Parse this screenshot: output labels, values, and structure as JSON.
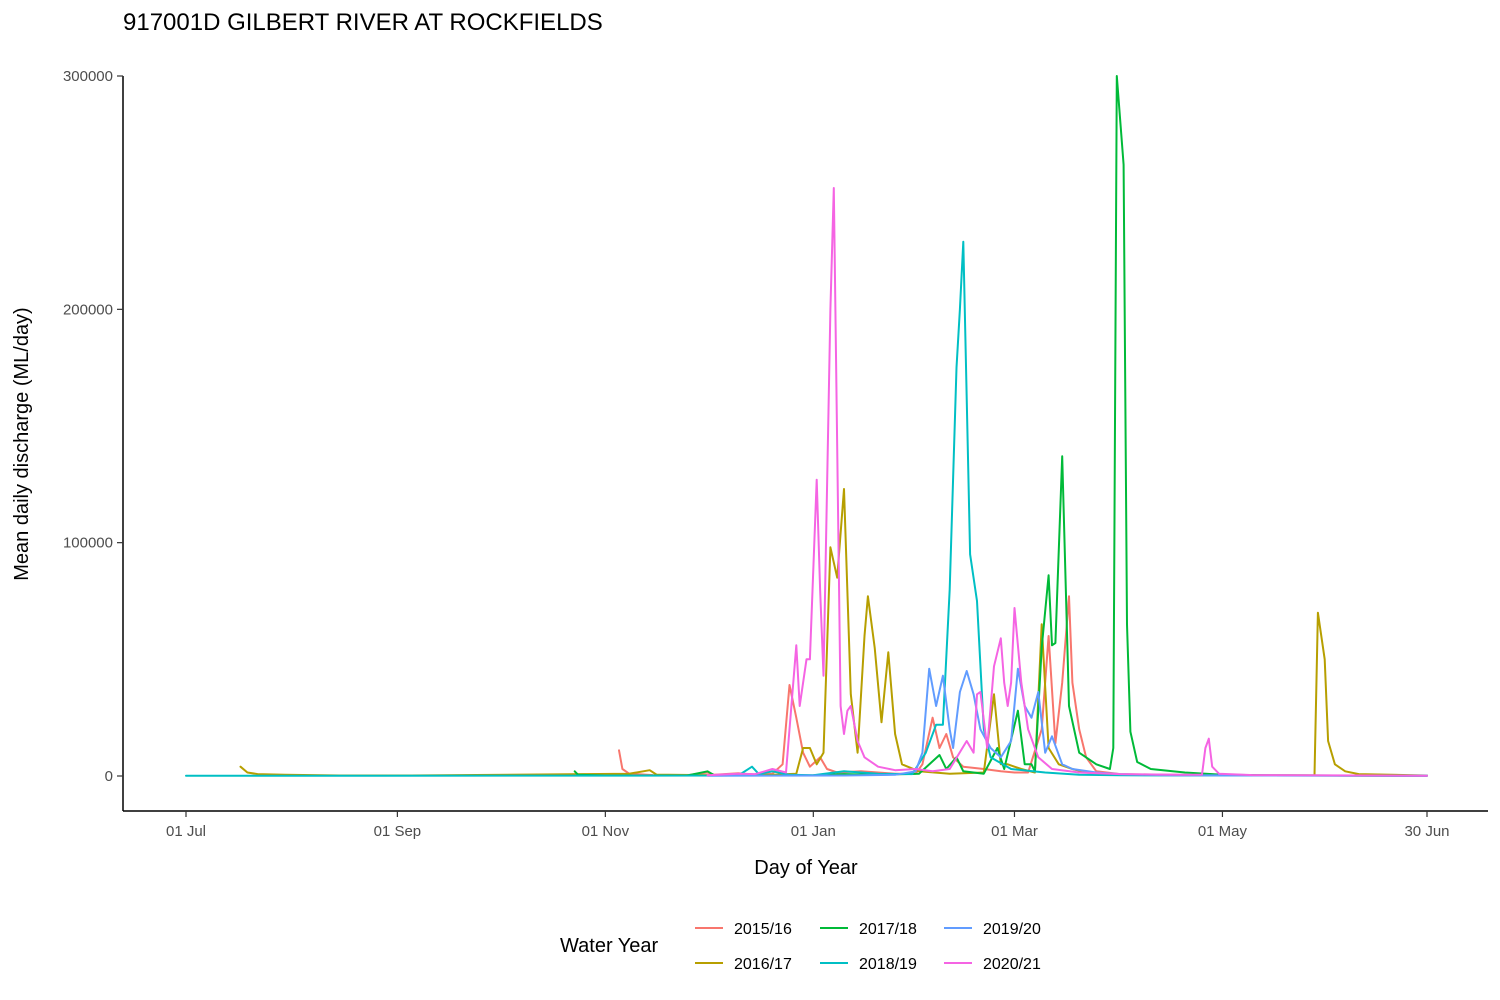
{
  "chart_data": {
    "type": "line",
    "title": "917001D GILBERT RIVER AT ROCKFIELDS",
    "xlabel": "Day of Year",
    "ylabel": "Mean daily discharge (ML/day)",
    "x_unit": "date (water year Jul–Jun)",
    "xlim": [
      "01 Jul",
      "30 Jun"
    ],
    "ylim": [
      -15000,
      300000
    ],
    "x_ticks": [
      {
        "label": "01 Jul",
        "date": "07-01"
      },
      {
        "label": "01 Sep",
        "date": "09-01"
      },
      {
        "label": "01 Nov",
        "date": "11-01"
      },
      {
        "label": "01 Jan",
        "date": "01-01"
      },
      {
        "label": "01 Mar",
        "date": "03-01"
      },
      {
        "label": "01 May",
        "date": "05-01"
      },
      {
        "label": "30 Jun",
        "date": "06-30"
      }
    ],
    "y_ticks": [
      {
        "label": "0",
        "value": 0
      },
      {
        "label": "100000",
        "value": 100000
      },
      {
        "label": "200000",
        "value": 200000
      },
      {
        "label": "300000",
        "value": 300000
      }
    ],
    "grid": false,
    "legend": {
      "title": "Water Year",
      "position": "bottom"
    },
    "series": [
      {
        "name": "2015/16",
        "color": "#F8766D",
        "points": [
          [
            "11-05",
            11000
          ],
          [
            "11-06",
            3000
          ],
          [
            "11-08",
            1000
          ],
          [
            "11-15",
            400
          ],
          [
            "11-25",
            300
          ],
          [
            "12-01",
            1500
          ],
          [
            "12-03",
            500
          ],
          [
            "12-10",
            1200
          ],
          [
            "12-15",
            500
          ],
          [
            "12-20",
            1000
          ],
          [
            "12-23",
            5000
          ],
          [
            "12-25",
            39000
          ],
          [
            "12-27",
            25000
          ],
          [
            "12-29",
            10000
          ],
          [
            "12-31",
            4000
          ],
          [
            "01-03",
            8000
          ],
          [
            "01-05",
            3000
          ],
          [
            "01-08",
            1500
          ],
          [
            "01-15",
            2000
          ],
          [
            "01-20",
            1500
          ],
          [
            "01-25",
            1000
          ],
          [
            "01-31",
            1000
          ],
          [
            "02-02",
            5000
          ],
          [
            "02-05",
            25000
          ],
          [
            "02-07",
            12000
          ],
          [
            "02-09",
            18000
          ],
          [
            "02-11",
            8000
          ],
          [
            "02-14",
            4000
          ],
          [
            "02-20",
            3000
          ],
          [
            "02-25",
            2000
          ],
          [
            "03-01",
            1500
          ],
          [
            "03-05",
            1500
          ],
          [
            "03-09",
            20000
          ],
          [
            "03-11",
            60000
          ],
          [
            "03-13",
            14000
          ],
          [
            "03-15",
            40000
          ],
          [
            "03-17",
            77000
          ],
          [
            "03-18",
            40000
          ],
          [
            "03-20",
            20000
          ],
          [
            "03-22",
            8000
          ],
          [
            "03-25",
            2000
          ],
          [
            "04-01",
            800
          ],
          [
            "04-15",
            500
          ],
          [
            "05-01",
            300
          ],
          [
            "06-30",
            100
          ]
        ]
      },
      {
        "name": "2016/17",
        "color": "#B79F00",
        "points": [
          [
            "07-17",
            4000
          ],
          [
            "07-19",
            1500
          ],
          [
            "07-22",
            800
          ],
          [
            "07-30",
            500
          ],
          [
            "08-15",
            200
          ],
          [
            "09-05",
            200
          ],
          [
            "11-08",
            1000
          ],
          [
            "11-14",
            2500
          ],
          [
            "11-16",
            600
          ],
          [
            "11-30",
            400
          ],
          [
            "12-10",
            300
          ],
          [
            "12-20",
            500
          ],
          [
            "12-27",
            1000
          ],
          [
            "12-29",
            12000
          ],
          [
            "12-31",
            12000
          ],
          [
            "01-02",
            5000
          ],
          [
            "01-04",
            10000
          ],
          [
            "01-06",
            98000
          ],
          [
            "01-08",
            85000
          ],
          [
            "01-10",
            123000
          ],
          [
            "01-12",
            35000
          ],
          [
            "01-14",
            10000
          ],
          [
            "01-16",
            60000
          ],
          [
            "01-17",
            77000
          ],
          [
            "01-19",
            55000
          ],
          [
            "01-21",
            23000
          ],
          [
            "01-23",
            53000
          ],
          [
            "01-25",
            18000
          ],
          [
            "01-27",
            5000
          ],
          [
            "02-01",
            2000
          ],
          [
            "02-10",
            1000
          ],
          [
            "02-20",
            1500
          ],
          [
            "02-23",
            35000
          ],
          [
            "02-25",
            5000
          ],
          [
            "02-27",
            5000
          ],
          [
            "03-03",
            3000
          ],
          [
            "03-07",
            1500
          ],
          [
            "03-09",
            65000
          ],
          [
            "03-11",
            12000
          ],
          [
            "03-14",
            5000
          ],
          [
            "03-18",
            3000
          ],
          [
            "03-22",
            1500
          ],
          [
            "04-01",
            500
          ],
          [
            "04-20",
            300
          ],
          [
            "05-10",
            200
          ],
          [
            "05-28",
            300
          ],
          [
            "05-29",
            70000
          ],
          [
            "05-31",
            50000
          ],
          [
            "06-01",
            15000
          ],
          [
            "06-03",
            5000
          ],
          [
            "06-06",
            2000
          ],
          [
            "06-10",
            800
          ],
          [
            "06-30",
            200
          ]
        ]
      },
      {
        "name": "2017/18",
        "color": "#00BA38",
        "points": [
          [
            "10-23",
            2000
          ],
          [
            "10-24",
            500
          ],
          [
            "11-01",
            200
          ],
          [
            "11-25",
            200
          ],
          [
            "12-01",
            2000
          ],
          [
            "12-03",
            300
          ],
          [
            "12-20",
            200
          ],
          [
            "01-01",
            300
          ],
          [
            "01-10",
            800
          ],
          [
            "01-20",
            500
          ],
          [
            "02-01",
            1000
          ],
          [
            "02-07",
            9000
          ],
          [
            "02-09",
            3000
          ],
          [
            "02-12",
            8000
          ],
          [
            "02-14",
            2000
          ],
          [
            "02-20",
            1000
          ],
          [
            "02-24",
            12000
          ],
          [
            "02-26",
            3000
          ],
          [
            "03-02",
            28000
          ],
          [
            "03-04",
            5000
          ],
          [
            "03-06",
            5000
          ],
          [
            "03-07",
            2000
          ],
          [
            "03-09",
            55000
          ],
          [
            "03-11",
            86000
          ],
          [
            "03-12",
            56000
          ],
          [
            "03-13",
            57000
          ],
          [
            "03-15",
            137000
          ],
          [
            "03-17",
            30000
          ],
          [
            "03-20",
            10000
          ],
          [
            "03-25",
            5000
          ],
          [
            "03-29",
            3000
          ],
          [
            "03-30",
            12000
          ],
          [
            "03-31",
            300000
          ],
          [
            "04-02",
            262000
          ],
          [
            "04-03",
            65000
          ],
          [
            "04-04",
            19000
          ],
          [
            "04-06",
            6000
          ],
          [
            "04-10",
            3000
          ],
          [
            "04-20",
            1500
          ],
          [
            "05-01",
            500
          ],
          [
            "05-15",
            300
          ],
          [
            "06-30",
            100
          ]
        ]
      },
      {
        "name": "2018/19",
        "color": "#00BFC4",
        "points": [
          [
            "07-01",
            100
          ],
          [
            "08-20",
            100
          ],
          [
            "12-10",
            200
          ],
          [
            "12-14",
            4000
          ],
          [
            "12-16",
            800
          ],
          [
            "12-20",
            2000
          ],
          [
            "12-25",
            500
          ],
          [
            "01-01",
            300
          ],
          [
            "01-10",
            2000
          ],
          [
            "01-20",
            1000
          ],
          [
            "01-30",
            800
          ],
          [
            "02-03",
            10000
          ],
          [
            "02-06",
            22000
          ],
          [
            "02-08",
            22000
          ],
          [
            "02-10",
            80000
          ],
          [
            "02-12",
            175000
          ],
          [
            "02-13",
            200000
          ],
          [
            "02-14",
            229000
          ],
          [
            "02-16",
            95000
          ],
          [
            "02-18",
            75000
          ],
          [
            "02-20",
            20000
          ],
          [
            "02-22",
            8000
          ],
          [
            "02-28",
            3000
          ],
          [
            "03-10",
            1500
          ],
          [
            "03-20",
            500
          ],
          [
            "04-01",
            300
          ],
          [
            "06-30",
            100
          ]
        ]
      },
      {
        "name": "2019/20",
        "color": "#619CFF",
        "points": [
          [
            "12-01",
            100
          ],
          [
            "01-10",
            200
          ],
          [
            "01-25",
            500
          ],
          [
            "01-31",
            2000
          ],
          [
            "02-02",
            10000
          ],
          [
            "02-04",
            46000
          ],
          [
            "02-06",
            30000
          ],
          [
            "02-08",
            43000
          ],
          [
            "02-10",
            20000
          ],
          [
            "02-11",
            12000
          ],
          [
            "02-13",
            36000
          ],
          [
            "02-15",
            45000
          ],
          [
            "02-17",
            35000
          ],
          [
            "02-19",
            20000
          ],
          [
            "02-22",
            12000
          ],
          [
            "02-25",
            8000
          ],
          [
            "02-28",
            15000
          ],
          [
            "03-02",
            46000
          ],
          [
            "03-04",
            30000
          ],
          [
            "03-06",
            25000
          ],
          [
            "03-08",
            36000
          ],
          [
            "03-10",
            10000
          ],
          [
            "03-12",
            17000
          ],
          [
            "03-15",
            5000
          ],
          [
            "03-18",
            3000
          ],
          [
            "03-25",
            1500
          ],
          [
            "04-01",
            800
          ],
          [
            "04-15",
            300
          ],
          [
            "06-30",
            100
          ]
        ]
      },
      {
        "name": "2020/21",
        "color": "#F564E3",
        "points": [
          [
            "12-01",
            300
          ],
          [
            "12-10",
            1000
          ],
          [
            "12-15",
            800
          ],
          [
            "12-20",
            3000
          ],
          [
            "12-24",
            1500
          ],
          [
            "12-27",
            56000
          ],
          [
            "12-28",
            30000
          ],
          [
            "12-30",
            50000
          ],
          [
            "12-31",
            50000
          ],
          [
            "01-02",
            127000
          ],
          [
            "01-03",
            80000
          ],
          [
            "01-04",
            43000
          ],
          [
            "01-06",
            200000
          ],
          [
            "01-07",
            252000
          ],
          [
            "01-09",
            30000
          ],
          [
            "01-10",
            18000
          ],
          [
            "01-11",
            28000
          ],
          [
            "01-12",
            30000
          ],
          [
            "01-14",
            15000
          ],
          [
            "01-16",
            8000
          ],
          [
            "01-20",
            4000
          ],
          [
            "01-25",
            2500
          ],
          [
            "01-31",
            3000
          ],
          [
            "02-05",
            2000
          ],
          [
            "02-10",
            3000
          ],
          [
            "02-15",
            15000
          ],
          [
            "02-17",
            10000
          ],
          [
            "02-18",
            35000
          ],
          [
            "02-19",
            36000
          ],
          [
            "02-21",
            12000
          ],
          [
            "02-23",
            47000
          ],
          [
            "02-25",
            59000
          ],
          [
            "02-26",
            40000
          ],
          [
            "02-27",
            30000
          ],
          [
            "02-28",
            40000
          ],
          [
            "03-01",
            72000
          ],
          [
            "03-03",
            40000
          ],
          [
            "03-05",
            20000
          ],
          [
            "03-08",
            8000
          ],
          [
            "03-12",
            3000
          ],
          [
            "03-20",
            1500
          ],
          [
            "04-01",
            800
          ],
          [
            "04-20",
            500
          ],
          [
            "04-25",
            600
          ],
          [
            "04-26",
            12000
          ],
          [
            "04-27",
            16000
          ],
          [
            "04-28",
            4000
          ],
          [
            "04-30",
            1000
          ],
          [
            "05-10",
            400
          ],
          [
            "06-30",
            100
          ]
        ]
      }
    ]
  }
}
